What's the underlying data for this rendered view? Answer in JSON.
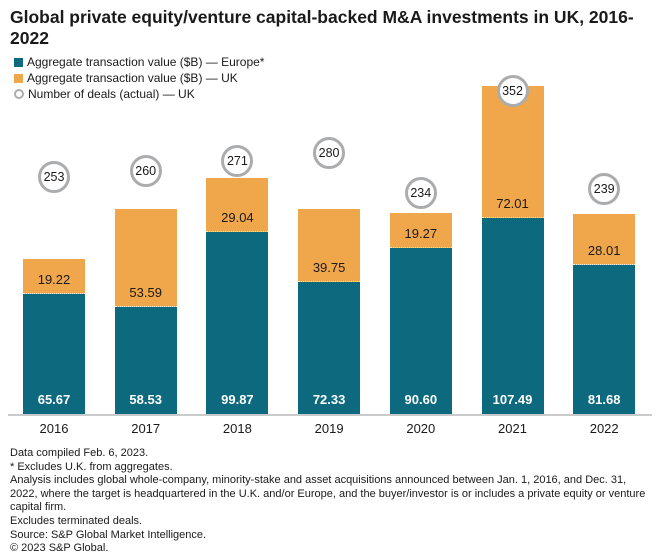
{
  "title": "Global private equity/venture capital-backed M&A investments in UK, 2016-2022",
  "legend": [
    {
      "label": "Aggregate transaction value ($B) — Europe*",
      "marker": "square",
      "color": "#0d697d"
    },
    {
      "label": "Aggregate transaction value ($B) — UK",
      "marker": "square",
      "color": "#f0a64a"
    },
    {
      "label": "Number of deals (actual) — UK",
      "marker": "ring",
      "color": "#abacae"
    }
  ],
  "chart_data": {
    "type": "bar",
    "stacked": true,
    "title": "Global private equity/venture capital-backed M&A investments in UK, 2016-2022",
    "categories": [
      "2016",
      "2017",
      "2018",
      "2019",
      "2020",
      "2021",
      "2022"
    ],
    "series": [
      {
        "name": "Aggregate transaction value ($B) — Europe*",
        "color": "#0d697d",
        "values": [
          65.67,
          58.53,
          99.87,
          72.33,
          90.6,
          107.49,
          81.68
        ]
      },
      {
        "name": "Aggregate transaction value ($B) — UK",
        "color": "#f0a64a",
        "values": [
          19.22,
          53.59,
          29.04,
          39.75,
          19.27,
          72.01,
          28.01
        ]
      }
    ],
    "point_series": {
      "name": "Number of deals (actual) — UK",
      "marker": "circle-badge",
      "ring_color": "#abacae",
      "values": [
        253,
        260,
        271,
        280,
        234,
        352,
        239
      ]
    },
    "value_labels": true,
    "grid": false,
    "y_axis_visible": false,
    "x_axis_line_color": "#c9cacb",
    "legend_position": "top-left"
  },
  "footnotes": [
    "Data compiled Feb. 6, 2023.",
    "* Excludes U.K. from aggregates.",
    "Analysis includes global whole-company, minority-stake and asset acquisitions announced between Jan. 1, 2016, and Dec. 31, 2022, where the target is headquartered in the U.K. and/or Europe, and the buyer/investor is or includes a private equity or venture capital firm.",
    "Excludes terminated deals.",
    "Source: S&P Global Market Intelligence.",
    "© 2023 S&P Global."
  ]
}
